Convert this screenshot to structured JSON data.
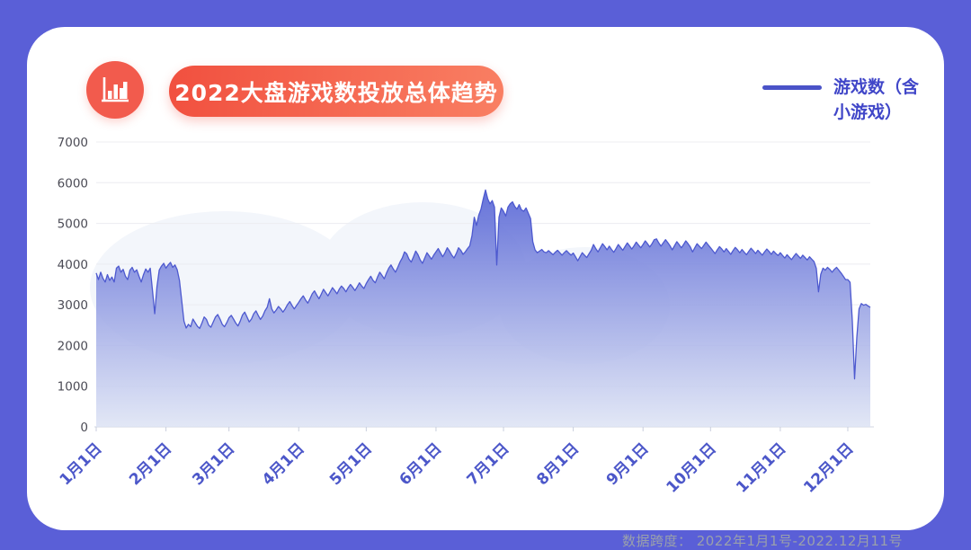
{
  "frame": {
    "background_color": "#5a5fd7",
    "card_color": "#ffffff"
  },
  "header": {
    "icon": "bar-chart-icon",
    "icon_color": "#f25b4d",
    "title": "2022大盘游戏数投放总体趋势",
    "title_pill_gradient": [
      "#f1503f",
      "#f97f63"
    ],
    "title_text_color": "#ffffff"
  },
  "legend": {
    "label": "游戏数（含小游戏）",
    "line1": "游戏数（含",
    "line2": "小游戏）",
    "swatch_color": "#4a53c8",
    "text_color": "#4046c8"
  },
  "footer": {
    "data_span": "数据跨度： 2022年1月1号-2022.12月11号",
    "color": "#9aa0ab"
  },
  "chart_data": {
    "type": "area",
    "title": "2022大盘游戏数投放总体趋势",
    "series_name": "游戏数（含小游戏）",
    "xlabel": "",
    "ylabel": "",
    "ylim": [
      0,
      7000
    ],
    "y_ticks": [
      0,
      1000,
      2000,
      3000,
      4000,
      5000,
      6000,
      7000
    ],
    "grid": true,
    "legend_position": "top-right",
    "x_total_days": 344,
    "x_tick_days": [
      0,
      31,
      59,
      90,
      120,
      151,
      181,
      212,
      243,
      273,
      304,
      334
    ],
    "x_tick_labels": [
      "1月1日",
      "2月1日",
      "3月1日",
      "4月1日",
      "5月1日",
      "6月1日",
      "7月1日",
      "8月1日",
      "9月1日",
      "10月1日",
      "11月1日",
      "12月1日"
    ],
    "colors": {
      "stroke": "#4d59cf",
      "area_top": "#5664d5",
      "area_bottom": "#dde3f4",
      "gridline": "#ececf1",
      "baseline": "#d9dde8",
      "tick": "#c9cedd",
      "y_label": "#4b4b55",
      "x_label": "#4c57c9",
      "watermark": "#f3f6fb"
    },
    "points": [
      [
        0,
        3780
      ],
      [
        1,
        3620
      ],
      [
        2,
        3800
      ],
      [
        3,
        3650
      ],
      [
        4,
        3560
      ],
      [
        5,
        3740
      ],
      [
        6,
        3600
      ],
      [
        7,
        3680
      ],
      [
        8,
        3560
      ],
      [
        9,
        3900
      ],
      [
        10,
        3950
      ],
      [
        11,
        3800
      ],
      [
        12,
        3870
      ],
      [
        13,
        3700
      ],
      [
        14,
        3620
      ],
      [
        15,
        3850
      ],
      [
        16,
        3920
      ],
      [
        17,
        3800
      ],
      [
        18,
        3860
      ],
      [
        19,
        3700
      ],
      [
        20,
        3560
      ],
      [
        21,
        3740
      ],
      [
        22,
        3880
      ],
      [
        23,
        3800
      ],
      [
        24,
        3900
      ],
      [
        25,
        3350
      ],
      [
        26,
        2780
      ],
      [
        27,
        3450
      ],
      [
        28,
        3850
      ],
      [
        29,
        3950
      ],
      [
        30,
        4020
      ],
      [
        31,
        3900
      ],
      [
        32,
        3980
      ],
      [
        33,
        4040
      ],
      [
        34,
        3920
      ],
      [
        35,
        3980
      ],
      [
        36,
        3860
      ],
      [
        37,
        3600
      ],
      [
        38,
        3100
      ],
      [
        39,
        2600
      ],
      [
        40,
        2430
      ],
      [
        41,
        2520
      ],
      [
        42,
        2460
      ],
      [
        43,
        2650
      ],
      [
        44,
        2560
      ],
      [
        45,
        2470
      ],
      [
        46,
        2420
      ],
      [
        47,
        2550
      ],
      [
        48,
        2700
      ],
      [
        49,
        2640
      ],
      [
        50,
        2500
      ],
      [
        51,
        2450
      ],
      [
        52,
        2580
      ],
      [
        53,
        2700
      ],
      [
        54,
        2760
      ],
      [
        55,
        2650
      ],
      [
        56,
        2520
      ],
      [
        57,
        2460
      ],
      [
        58,
        2560
      ],
      [
        59,
        2680
      ],
      [
        60,
        2740
      ],
      [
        61,
        2650
      ],
      [
        62,
        2550
      ],
      [
        63,
        2480
      ],
      [
        64,
        2600
      ],
      [
        65,
        2750
      ],
      [
        66,
        2820
      ],
      [
        67,
        2700
      ],
      [
        68,
        2580
      ],
      [
        69,
        2650
      ],
      [
        70,
        2780
      ],
      [
        71,
        2850
      ],
      [
        72,
        2740
      ],
      [
        73,
        2640
      ],
      [
        74,
        2720
      ],
      [
        75,
        2850
      ],
      [
        76,
        2940
      ],
      [
        77,
        3150
      ],
      [
        78,
        2900
      ],
      [
        79,
        2800
      ],
      [
        80,
        2870
      ],
      [
        81,
        2960
      ],
      [
        82,
        2900
      ],
      [
        83,
        2820
      ],
      [
        84,
        2900
      ],
      [
        85,
        3000
      ],
      [
        86,
        3080
      ],
      [
        87,
        2980
      ],
      [
        88,
        2900
      ],
      [
        89,
        2980
      ],
      [
        90,
        3060
      ],
      [
        91,
        3150
      ],
      [
        92,
        3220
      ],
      [
        93,
        3120
      ],
      [
        94,
        3040
      ],
      [
        95,
        3150
      ],
      [
        96,
        3270
      ],
      [
        97,
        3340
      ],
      [
        98,
        3240
      ],
      [
        99,
        3150
      ],
      [
        100,
        3260
      ],
      [
        101,
        3380
      ],
      [
        102,
        3300
      ],
      [
        103,
        3220
      ],
      [
        104,
        3320
      ],
      [
        105,
        3420
      ],
      [
        106,
        3350
      ],
      [
        107,
        3270
      ],
      [
        108,
        3380
      ],
      [
        109,
        3460
      ],
      [
        110,
        3400
      ],
      [
        111,
        3320
      ],
      [
        112,
        3420
      ],
      [
        113,
        3500
      ],
      [
        114,
        3430
      ],
      [
        115,
        3350
      ],
      [
        116,
        3440
      ],
      [
        117,
        3540
      ],
      [
        118,
        3460
      ],
      [
        119,
        3400
      ],
      [
        120,
        3520
      ],
      [
        121,
        3620
      ],
      [
        122,
        3700
      ],
      [
        123,
        3600
      ],
      [
        124,
        3540
      ],
      [
        125,
        3680
      ],
      [
        126,
        3800
      ],
      [
        127,
        3720
      ],
      [
        128,
        3640
      ],
      [
        129,
        3780
      ],
      [
        130,
        3900
      ],
      [
        131,
        3980
      ],
      [
        132,
        3880
      ],
      [
        133,
        3800
      ],
      [
        134,
        3920
      ],
      [
        135,
        4050
      ],
      [
        136,
        4150
      ],
      [
        137,
        4300
      ],
      [
        138,
        4250
      ],
      [
        139,
        4120
      ],
      [
        140,
        4050
      ],
      [
        141,
        4180
      ],
      [
        142,
        4320
      ],
      [
        143,
        4230
      ],
      [
        144,
        4100
      ],
      [
        145,
        4020
      ],
      [
        146,
        4150
      ],
      [
        147,
        4280
      ],
      [
        148,
        4200
      ],
      [
        149,
        4120
      ],
      [
        150,
        4220
      ],
      [
        151,
        4300
      ],
      [
        152,
        4380
      ],
      [
        153,
        4280
      ],
      [
        154,
        4180
      ],
      [
        155,
        4280
      ],
      [
        156,
        4400
      ],
      [
        157,
        4320
      ],
      [
        158,
        4220
      ],
      [
        159,
        4150
      ],
      [
        160,
        4260
      ],
      [
        161,
        4400
      ],
      [
        162,
        4340
      ],
      [
        163,
        4240
      ],
      [
        164,
        4300
      ],
      [
        165,
        4380
      ],
      [
        166,
        4450
      ],
      [
        167,
        4700
      ],
      [
        168,
        5150
      ],
      [
        169,
        4950
      ],
      [
        170,
        5200
      ],
      [
        171,
        5350
      ],
      [
        172,
        5600
      ],
      [
        173,
        5820
      ],
      [
        174,
        5600
      ],
      [
        175,
        5480
      ],
      [
        176,
        5560
      ],
      [
        177,
        5400
      ],
      [
        178,
        3980
      ],
      [
        179,
        5150
      ],
      [
        180,
        5380
      ],
      [
        181,
        5300
      ],
      [
        182,
        5180
      ],
      [
        183,
        5400
      ],
      [
        184,
        5480
      ],
      [
        185,
        5530
      ],
      [
        186,
        5420
      ],
      [
        187,
        5350
      ],
      [
        188,
        5460
      ],
      [
        189,
        5330
      ],
      [
        190,
        5300
      ],
      [
        191,
        5380
      ],
      [
        192,
        5250
      ],
      [
        193,
        5120
      ],
      [
        194,
        4550
      ],
      [
        195,
        4350
      ],
      [
        196,
        4280
      ],
      [
        197,
        4320
      ],
      [
        198,
        4360
      ],
      [
        199,
        4300
      ],
      [
        200,
        4280
      ],
      [
        201,
        4330
      ],
      [
        202,
        4280
      ],
      [
        203,
        4230
      ],
      [
        204,
        4290
      ],
      [
        205,
        4340
      ],
      [
        206,
        4280
      ],
      [
        207,
        4220
      ],
      [
        208,
        4280
      ],
      [
        209,
        4330
      ],
      [
        210,
        4270
      ],
      [
        211,
        4220
      ],
      [
        212,
        4270
      ],
      [
        213,
        4180
      ],
      [
        214,
        4080
      ],
      [
        215,
        4180
      ],
      [
        216,
        4280
      ],
      [
        217,
        4220
      ],
      [
        218,
        4160
      ],
      [
        219,
        4250
      ],
      [
        220,
        4340
      ],
      [
        221,
        4480
      ],
      [
        222,
        4380
      ],
      [
        223,
        4300
      ],
      [
        224,
        4400
      ],
      [
        225,
        4500
      ],
      [
        226,
        4430
      ],
      [
        227,
        4350
      ],
      [
        228,
        4440
      ],
      [
        229,
        4360
      ],
      [
        230,
        4290
      ],
      [
        231,
        4380
      ],
      [
        232,
        4480
      ],
      [
        233,
        4410
      ],
      [
        234,
        4340
      ],
      [
        235,
        4430
      ],
      [
        236,
        4520
      ],
      [
        237,
        4450
      ],
      [
        238,
        4370
      ],
      [
        239,
        4450
      ],
      [
        240,
        4540
      ],
      [
        241,
        4470
      ],
      [
        242,
        4400
      ],
      [
        243,
        4480
      ],
      [
        244,
        4570
      ],
      [
        245,
        4500
      ],
      [
        246,
        4420
      ],
      [
        247,
        4500
      ],
      [
        248,
        4600
      ],
      [
        249,
        4620
      ],
      [
        250,
        4520
      ],
      [
        251,
        4440
      ],
      [
        252,
        4520
      ],
      [
        253,
        4600
      ],
      [
        254,
        4530
      ],
      [
        255,
        4450
      ],
      [
        256,
        4350
      ],
      [
        257,
        4450
      ],
      [
        258,
        4550
      ],
      [
        259,
        4480
      ],
      [
        260,
        4400
      ],
      [
        261,
        4480
      ],
      [
        262,
        4570
      ],
      [
        263,
        4500
      ],
      [
        264,
        4420
      ],
      [
        265,
        4300
      ],
      [
        266,
        4400
      ],
      [
        267,
        4500
      ],
      [
        268,
        4440
      ],
      [
        269,
        4380
      ],
      [
        270,
        4460
      ],
      [
        271,
        4540
      ],
      [
        272,
        4470
      ],
      [
        273,
        4400
      ],
      [
        274,
        4330
      ],
      [
        275,
        4260
      ],
      [
        276,
        4350
      ],
      [
        277,
        4430
      ],
      [
        278,
        4370
      ],
      [
        279,
        4300
      ],
      [
        280,
        4380
      ],
      [
        281,
        4310
      ],
      [
        282,
        4240
      ],
      [
        283,
        4330
      ],
      [
        284,
        4410
      ],
      [
        285,
        4350
      ],
      [
        286,
        4280
      ],
      [
        287,
        4360
      ],
      [
        288,
        4290
      ],
      [
        289,
        4230
      ],
      [
        290,
        4310
      ],
      [
        291,
        4390
      ],
      [
        292,
        4330
      ],
      [
        293,
        4260
      ],
      [
        294,
        4340
      ],
      [
        295,
        4280
      ],
      [
        296,
        4220
      ],
      [
        297,
        4300
      ],
      [
        298,
        4370
      ],
      [
        299,
        4310
      ],
      [
        300,
        4240
      ],
      [
        301,
        4320
      ],
      [
        302,
        4260
      ],
      [
        303,
        4210
      ],
      [
        304,
        4280
      ],
      [
        305,
        4210
      ],
      [
        306,
        4150
      ],
      [
        307,
        4230
      ],
      [
        308,
        4170
      ],
      [
        309,
        4110
      ],
      [
        310,
        4190
      ],
      [
        311,
        4260
      ],
      [
        312,
        4200
      ],
      [
        313,
        4140
      ],
      [
        314,
        4220
      ],
      [
        315,
        4160
      ],
      [
        316,
        4100
      ],
      [
        317,
        4180
      ],
      [
        318,
        4120
      ],
      [
        319,
        4060
      ],
      [
        320,
        3900
      ],
      [
        321,
        3320
      ],
      [
        322,
        3750
      ],
      [
        323,
        3900
      ],
      [
        324,
        3850
      ],
      [
        325,
        3920
      ],
      [
        326,
        3870
      ],
      [
        327,
        3800
      ],
      [
        328,
        3870
      ],
      [
        329,
        3920
      ],
      [
        330,
        3850
      ],
      [
        331,
        3780
      ],
      [
        332,
        3700
      ],
      [
        333,
        3620
      ],
      [
        334,
        3620
      ],
      [
        335,
        3550
      ],
      [
        336,
        2600
      ],
      [
        337,
        1180
      ],
      [
        338,
        2200
      ],
      [
        339,
        2900
      ],
      [
        340,
        3030
      ],
      [
        341,
        2990
      ],
      [
        342,
        3010
      ],
      [
        343,
        2970
      ],
      [
        344,
        2940
      ]
    ]
  }
}
